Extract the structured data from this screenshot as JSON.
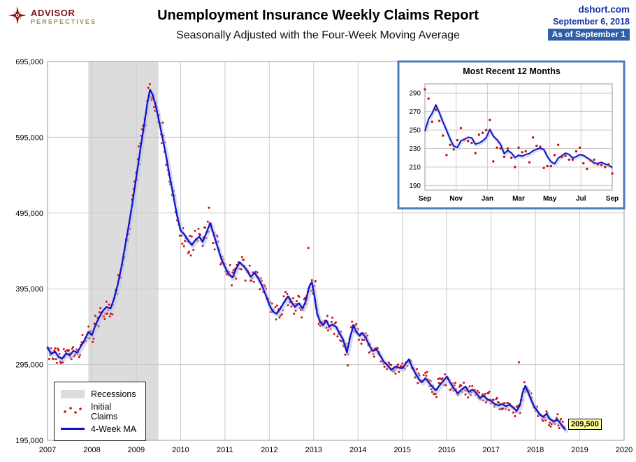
{
  "header": {
    "logo": {
      "line1": "ADVISOR",
      "line2": "PERSPECTIVES"
    },
    "title": "Unemployment Insurance Weekly Claims Report",
    "subtitle": "Seasonally Adjusted with the Four-Week Moving Average",
    "source": {
      "site": "dshort.com",
      "date": "September 6, 2018",
      "as_of": "As of September 1"
    }
  },
  "colors": {
    "ma_line": "#1212CC",
    "ma_halo": "#B9CBE9",
    "dots": "#CC1111",
    "recession": "#DCDCDC",
    "grid": "#C9C9C9",
    "plot_border": "#9A9A9A",
    "accent_blue": "#2E5FA8",
    "header_blue": "#1331A5",
    "logo_maroon": "#7A1518",
    "logo_gold": "#A8894E",
    "callout_bg": "#FFFF99",
    "inset_border": "#4A7EBB"
  },
  "chart_data": [
    {
      "type": "line+scatter",
      "title": "Unemployment Insurance Weekly Claims Report",
      "subtitle": "Seasonally Adjusted with the Four-Week Moving Average",
      "legend": [
        "Recessions",
        "Initial Claims",
        "4-Week MA"
      ],
      "series": [
        {
          "name": "Initial Claims",
          "style": "scatter",
          "color": "#CC1111"
        },
        {
          "name": "4-Week MA",
          "style": "line",
          "color": "#1212CC"
        }
      ],
      "x_ticks": [
        2007,
        2008,
        2009,
        2010,
        2011,
        2012,
        2013,
        2014,
        2015,
        2016,
        2017,
        2018,
        2019,
        2020
      ],
      "xlim": [
        2007,
        2020
      ],
      "y_ticks_thousands": [
        195,
        295,
        395,
        495,
        595,
        695
      ],
      "ylim_thousands": [
        195,
        695
      ],
      "grid": true,
      "recession_band": [
        2007.92,
        2009.5
      ],
      "end_label": "209,500",
      "end_value_thousands": 209.5,
      "ma_4wk_thousands": [
        [
          2007.0,
          318
        ],
        [
          2007.08,
          309
        ],
        [
          2007.17,
          312
        ],
        [
          2007.25,
          305
        ],
        [
          2007.33,
          303
        ],
        [
          2007.42,
          310
        ],
        [
          2007.5,
          307
        ],
        [
          2007.58,
          313
        ],
        [
          2007.67,
          311
        ],
        [
          2007.75,
          319
        ],
        [
          2007.83,
          327
        ],
        [
          2007.92,
          338
        ],
        [
          2008.0,
          334
        ],
        [
          2008.08,
          347
        ],
        [
          2008.17,
          358
        ],
        [
          2008.25,
          366
        ],
        [
          2008.33,
          371
        ],
        [
          2008.42,
          369
        ],
        [
          2008.5,
          382
        ],
        [
          2008.58,
          400
        ],
        [
          2008.67,
          425
        ],
        [
          2008.75,
          452
        ],
        [
          2008.83,
          478
        ],
        [
          2008.92,
          510
        ],
        [
          2009.0,
          542
        ],
        [
          2009.08,
          574
        ],
        [
          2009.17,
          608
        ],
        [
          2009.25,
          640
        ],
        [
          2009.31,
          658
        ],
        [
          2009.37,
          651
        ],
        [
          2009.44,
          637
        ],
        [
          2009.5,
          620
        ],
        [
          2009.58,
          598
        ],
        [
          2009.67,
          572
        ],
        [
          2009.75,
          545
        ],
        [
          2009.83,
          520
        ],
        [
          2009.92,
          492
        ],
        [
          2010.0,
          472
        ],
        [
          2010.08,
          467
        ],
        [
          2010.17,
          459
        ],
        [
          2010.25,
          453
        ],
        [
          2010.33,
          459
        ],
        [
          2010.42,
          464
        ],
        [
          2010.5,
          457
        ],
        [
          2010.58,
          469
        ],
        [
          2010.67,
          482
        ],
        [
          2010.75,
          466
        ],
        [
          2010.83,
          451
        ],
        [
          2010.92,
          434
        ],
        [
          2011.0,
          424
        ],
        [
          2011.08,
          415
        ],
        [
          2011.17,
          410
        ],
        [
          2011.25,
          421
        ],
        [
          2011.33,
          430
        ],
        [
          2011.42,
          425
        ],
        [
          2011.5,
          419
        ],
        [
          2011.58,
          411
        ],
        [
          2011.67,
          416
        ],
        [
          2011.75,
          409
        ],
        [
          2011.83,
          400
        ],
        [
          2011.92,
          387
        ],
        [
          2012.0,
          374
        ],
        [
          2012.08,
          365
        ],
        [
          2012.17,
          362
        ],
        [
          2012.25,
          369
        ],
        [
          2012.33,
          377
        ],
        [
          2012.42,
          385
        ],
        [
          2012.5,
          377
        ],
        [
          2012.58,
          371
        ],
        [
          2012.67,
          376
        ],
        [
          2012.75,
          369
        ],
        [
          2012.83,
          380
        ],
        [
          2012.9,
          398
        ],
        [
          2012.96,
          404
        ],
        [
          2013.02,
          385
        ],
        [
          2013.08,
          362
        ],
        [
          2013.15,
          351
        ],
        [
          2013.21,
          347
        ],
        [
          2013.29,
          353
        ],
        [
          2013.35,
          345
        ],
        [
          2013.42,
          348
        ],
        [
          2013.5,
          345
        ],
        [
          2013.58,
          337
        ],
        [
          2013.67,
          327
        ],
        [
          2013.75,
          311
        ],
        [
          2013.83,
          333
        ],
        [
          2013.9,
          347
        ],
        [
          2013.96,
          338
        ],
        [
          2014.04,
          333
        ],
        [
          2014.1,
          337
        ],
        [
          2014.17,
          331
        ],
        [
          2014.25,
          321
        ],
        [
          2014.33,
          313
        ],
        [
          2014.42,
          315
        ],
        [
          2014.5,
          307
        ],
        [
          2014.58,
          299
        ],
        [
          2014.67,
          294
        ],
        [
          2014.75,
          288
        ],
        [
          2014.83,
          292
        ],
        [
          2014.92,
          291
        ],
        [
          2015.0,
          290
        ],
        [
          2015.08,
          297
        ],
        [
          2015.15,
          302
        ],
        [
          2015.21,
          293
        ],
        [
          2015.29,
          284
        ],
        [
          2015.37,
          276
        ],
        [
          2015.44,
          272
        ],
        [
          2015.52,
          277
        ],
        [
          2015.6,
          271
        ],
        [
          2015.67,
          266
        ],
        [
          2015.75,
          261
        ],
        [
          2015.83,
          267
        ],
        [
          2015.92,
          273
        ],
        [
          2016.0,
          279
        ],
        [
          2016.08,
          271
        ],
        [
          2016.17,
          263
        ],
        [
          2016.25,
          257
        ],
        [
          2016.33,
          262
        ],
        [
          2016.42,
          266
        ],
        [
          2016.5,
          259
        ],
        [
          2016.58,
          262
        ],
        [
          2016.67,
          257
        ],
        [
          2016.75,
          251
        ],
        [
          2016.83,
          254
        ],
        [
          2016.92,
          249
        ],
        [
          2017.0,
          247
        ],
        [
          2017.08,
          243
        ],
        [
          2017.17,
          241
        ],
        [
          2017.25,
          243
        ],
        [
          2017.33,
          240
        ],
        [
          2017.42,
          242
        ],
        [
          2017.5,
          238
        ],
        [
          2017.58,
          234
        ],
        [
          2017.65,
          241
        ],
        [
          2017.71,
          258
        ],
        [
          2017.77,
          267
        ],
        [
          2017.83,
          259
        ],
        [
          2017.9,
          249
        ],
        [
          2017.96,
          241
        ],
        [
          2018.04,
          234
        ],
        [
          2018.1,
          229
        ],
        [
          2018.17,
          226
        ],
        [
          2018.25,
          230
        ],
        [
          2018.33,
          223
        ],
        [
          2018.42,
          220
        ],
        [
          2018.5,
          222
        ],
        [
          2018.58,
          216
        ],
        [
          2018.63,
          212
        ],
        [
          2018.67,
          209.5
        ]
      ],
      "outlier_claims_thousands": [
        [
          2012.88,
          449
        ],
        [
          2013.04,
          405
        ],
        [
          2013.77,
          294
        ],
        [
          2017.63,
          298
        ],
        [
          2010.64,
          502
        ]
      ]
    },
    {
      "type": "line+scatter",
      "title": "Most Recent 12 Months",
      "x_tick_labels": [
        "Sep",
        "Nov",
        "Jan",
        "Mar",
        "May",
        "Jul",
        "Sep"
      ],
      "y_ticks": [
        190,
        210,
        230,
        250,
        270,
        290
      ],
      "ylim": [
        185,
        300
      ],
      "grid": true,
      "weekly_initial_claims_thousands": [
        294,
        284,
        259,
        272,
        260,
        244,
        223,
        234,
        229,
        239,
        252,
        240,
        238,
        236,
        225,
        245,
        247,
        250,
        261,
        216,
        231,
        230,
        221,
        230,
        220,
        210,
        231,
        226,
        227,
        215,
        242,
        233,
        232,
        209,
        211,
        211,
        223,
        234,
        221,
        222,
        218,
        218,
        227,
        231,
        214,
        208,
        217,
        218,
        213,
        212,
        210,
        213,
        203
      ],
      "prior_weeks_for_ma_thousands": [
        232,
        234,
        236
      ]
    }
  ]
}
